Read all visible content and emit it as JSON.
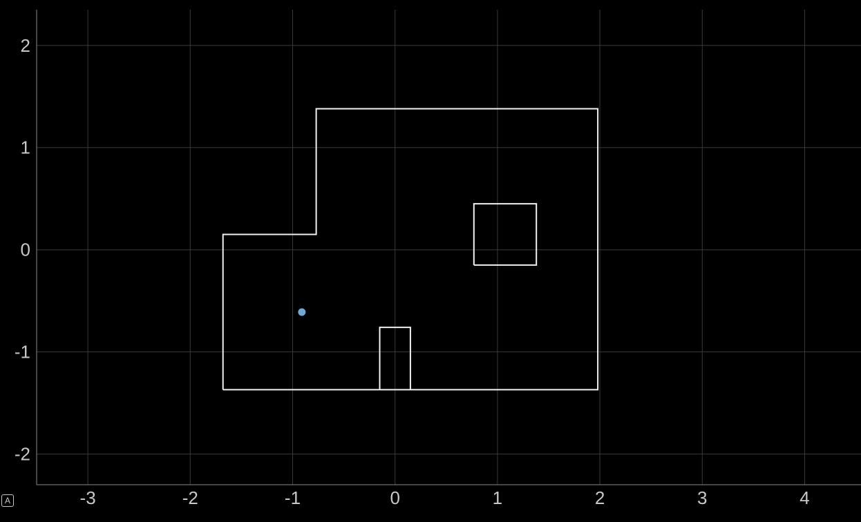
{
  "chart_data": {
    "type": "line",
    "title": "",
    "xlabel": "",
    "ylabel": "",
    "xlim": [
      -3.5,
      4.55
    ],
    "ylim": [
      -2.3,
      2.35
    ],
    "grid": true,
    "x_ticks": [
      -3,
      -2,
      -1,
      0,
      1,
      2,
      3,
      4
    ],
    "y_ticks": [
      -2,
      -1,
      0,
      1,
      2
    ],
    "x_tick_labels": [
      "-3",
      "-2",
      "-1",
      "0",
      "1",
      "2",
      "3",
      "4"
    ],
    "y_tick_labels": [
      "-2",
      "-1",
      "0",
      "1",
      "2"
    ],
    "series": [
      {
        "kind": "polyline",
        "color": "#f2f2f2",
        "points": [
          [
            -1.68,
            -1.37
          ],
          [
            -1.68,
            0.15
          ],
          [
            -0.77,
            0.15
          ],
          [
            -0.77,
            1.38
          ],
          [
            1.98,
            1.38
          ],
          [
            1.98,
            -1.37
          ],
          [
            -1.68,
            -1.37
          ]
        ]
      },
      {
        "kind": "polyline",
        "color": "#f2f2f2",
        "points": [
          [
            -0.15,
            -1.37
          ],
          [
            -0.15,
            -0.76
          ],
          [
            0.15,
            -0.76
          ],
          [
            0.15,
            -1.37
          ]
        ]
      },
      {
        "kind": "polyline",
        "color": "#f2f2f2",
        "points": [
          [
            0.77,
            -0.15
          ],
          [
            0.77,
            0.45
          ],
          [
            1.38,
            0.45
          ],
          [
            1.38,
            -0.15
          ],
          [
            0.77,
            -0.15
          ]
        ]
      },
      {
        "kind": "point",
        "color": "#6aa9d8",
        "points": [
          [
            -0.91,
            -0.61
          ]
        ]
      }
    ]
  },
  "badge": {
    "label": "A"
  }
}
